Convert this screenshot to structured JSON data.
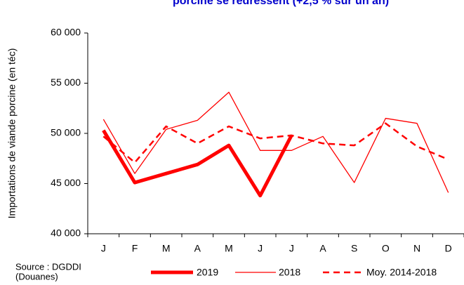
{
  "chart_data": {
    "type": "line",
    "title": "porcine se redressent (+2,5 % sur un an)",
    "y_label": "Importations de viande porcine (en téc)",
    "source": [
      "Source : DGDDI",
      "(Douanes)"
    ],
    "categories": [
      "J",
      "F",
      "M",
      "A",
      "M",
      "J",
      "J",
      "A",
      "S",
      "O",
      "N",
      "D"
    ],
    "series": [
      {
        "name": "2019",
        "color": "#ff0000",
        "values": [
          50300,
          45100,
          46000,
          46900,
          48800,
          43800,
          49800,
          null,
          null,
          null,
          null,
          null
        ]
      },
      {
        "name": "2018",
        "color": "#ff0000",
        "values": [
          51400,
          46000,
          50400,
          51300,
          54100,
          48300,
          48300,
          49700,
          45100,
          51500,
          51000,
          44100
        ]
      },
      {
        "name": "Moy. 2014-2018",
        "color": "#ff0000",
        "values": [
          49700,
          47100,
          50700,
          49000,
          50700,
          49500,
          49800,
          49000,
          48800,
          51000,
          48700,
          47400
        ]
      }
    ],
    "ylim": [
      40000,
      60000
    ],
    "yticks": [
      {
        "value": 40000,
        "label": "40 000"
      },
      {
        "value": 45000,
        "label": "45 000"
      },
      {
        "value": 50000,
        "label": "50 000"
      },
      {
        "value": 55000,
        "label": "55 000"
      },
      {
        "value": 60000,
        "label": "60 000"
      }
    ],
    "legend": "bottom"
  }
}
